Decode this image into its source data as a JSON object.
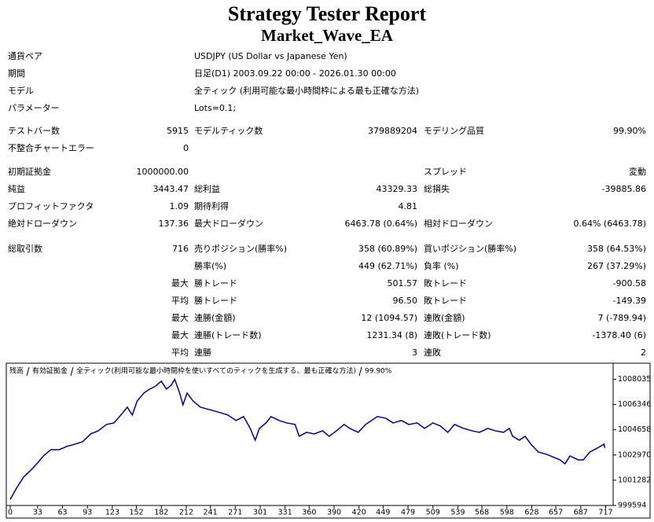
{
  "header": {
    "title": "Strategy Tester Report",
    "subtitle": "Market_Wave_EA"
  },
  "settings": [
    [
      "通貨ペア",
      "USDJPY (US Dollar vs Japanese Yen)"
    ],
    [
      "期間",
      "日足(D1) 2003.09.22 00:00 - 2026.01.30 00:00"
    ],
    [
      "モデル",
      "全ティック (利用可能な最小時間枠による最も正確な方法)"
    ],
    [
      "パラメーター",
      "Lots=0.1;"
    ]
  ],
  "rows": [
    [
      "テストバー数",
      "5915",
      "モデルティック数",
      "379889204",
      "モデリング品質",
      "99.90%"
    ],
    [
      "不整合チャートエラー",
      "0",
      null,
      null,
      null,
      null
    ],
    [
      "初期証拠金",
      "1000000.00",
      null,
      null,
      "スプレッド",
      "変動"
    ],
    [
      "純益",
      "3443.47",
      "総利益",
      "43329.33",
      "総損失",
      "-39885.86"
    ],
    [
      "プロフィットファクタ",
      "1.09",
      "期待利得",
      "4.81",
      null,
      null
    ],
    [
      "絶対ドローダウン",
      "137.36",
      "最大ドローダウン",
      "6463.78 (0.64%)",
      "相対ドローダウン",
      "0.64% (6463.78)"
    ],
    [
      "総取引数",
      "716",
      "売りポジション(勝率%)",
      "358 (60.89%)",
      "買いポジション(勝率%)",
      "358 (64.53%)"
    ],
    [
      null,
      null,
      "勝率(%)",
      "449 (62.71%)",
      "負率 (%)",
      "267 (37.29%)"
    ],
    [
      null,
      "最大",
      "勝トレード",
      "501.57",
      "敗トレード",
      "-900.58"
    ],
    [
      null,
      "平均",
      "勝トレード",
      "96.50",
      "敗トレード",
      "-149.39"
    ],
    [
      null,
      "最大",
      "連勝(金額)",
      "12 (1094.57)",
      "連敗(金額)",
      "7 (-789.94)"
    ],
    [
      null,
      "最大",
      "連勝(トレード数)",
      "1231.34 (8)",
      "連敗(トレード数)",
      "-1378.40 (6)"
    ],
    [
      null,
      "平均",
      "連勝",
      "3",
      "連敗",
      "2"
    ]
  ],
  "chart_data": {
    "type": "line",
    "legend": [
      {
        "text": "残高",
        "color": "#000080"
      },
      {
        "text": "有効証拠金",
        "color": "#008000"
      },
      {
        "text": "全ティック(利用可能な最小時間枠を使いすべてのティックを生成する、最も正確な方法)",
        "color": "#000000"
      },
      {
        "text": "99.90%",
        "color": "#000000"
      }
    ],
    "x": [
      0,
      7,
      16,
      25,
      32,
      40,
      49,
      59,
      68,
      78,
      87,
      97,
      106,
      116,
      125,
      134,
      141,
      147,
      153,
      161,
      168,
      174,
      182,
      188,
      194,
      198,
      204,
      208,
      213,
      220,
      229,
      236,
      243,
      253,
      262,
      272,
      281,
      289,
      295,
      300,
      308,
      314,
      324,
      333,
      343,
      348,
      357,
      366,
      376,
      384,
      393,
      402,
      409,
      419,
      428,
      435,
      442,
      452,
      461,
      471,
      480,
      490,
      499,
      509,
      518,
      527,
      535,
      546,
      556,
      565,
      575,
      584,
      594,
      601,
      605,
      613,
      620,
      627,
      636,
      646,
      655,
      662,
      668,
      674,
      684,
      690,
      698,
      707,
      715,
      716
    ],
    "series": [
      {
        "name": "残高",
        "color": "#000080",
        "values": [
          1000000,
          1000698,
          1001487,
          1001960,
          1002381,
          1002907,
          1003327,
          1003327,
          1003538,
          1003695,
          1003853,
          1004379,
          1004589,
          1005010,
          1005115,
          1005693,
          1006167,
          1005641,
          1006587,
          1007113,
          1007376,
          1007534,
          1007902,
          1007376,
          1007639,
          1008035,
          1007113,
          1006324,
          1007113,
          1006587,
          1006167,
          1006061,
          1005956,
          1005798,
          1005641,
          1005273,
          1005536,
          1004747,
          1003958,
          1004747,
          1005115,
          1005536,
          1005273,
          1005115,
          1005010,
          1004221,
          1004484,
          1004379,
          1004589,
          1004221,
          1004589,
          1005010,
          1004747,
          1004484,
          1005010,
          1005273,
          1005536,
          1005430,
          1005115,
          1005273,
          1005010,
          1005115,
          1004747,
          1005115,
          1004905,
          1004484,
          1005010,
          1004747,
          1004589,
          1004484,
          1004747,
          1004589,
          1004484,
          1004747,
          1004221,
          1003958,
          1004221,
          1003695,
          1003169,
          1003012,
          1002801,
          1002644,
          1002381,
          1002907,
          1002644,
          1002644,
          1003169,
          1003432,
          1003695,
          1003443
        ]
      }
    ],
    "xlim": [
      0,
      726
    ],
    "ylim": [
      999594,
      1009000
    ],
    "xticks": [
      0,
      33,
      63,
      93,
      123,
      152,
      182,
      212,
      241,
      271,
      301,
      331,
      360,
      390,
      420,
      449,
      479,
      509,
      539,
      568,
      598,
      628,
      657,
      687,
      717
    ],
    "yticks": [
      1008035,
      1006346,
      1004658,
      1002970,
      1001282,
      999594
    ]
  }
}
